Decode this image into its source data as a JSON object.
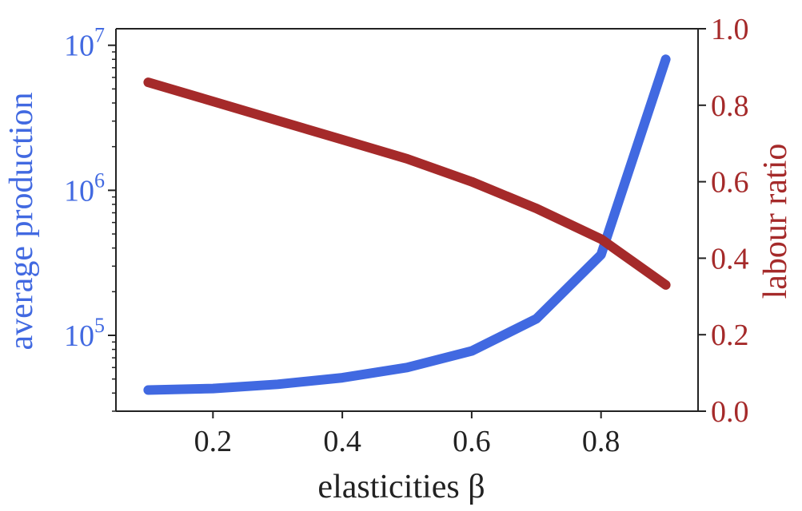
{
  "chart_data": {
    "type": "line",
    "xlabel": "elasticities β",
    "ylabel_left": "average production",
    "ylabel_right": "labour ratio",
    "x_ticks": [
      "0.2",
      "0.4",
      "0.6",
      "0.8"
    ],
    "x_tick_values": [
      0.2,
      0.4,
      0.6,
      0.8
    ],
    "xlim": [
      0.05,
      0.95
    ],
    "y_left_scale": "log",
    "y_left_lim": [
      30000,
      13000000
    ],
    "y_left_ticks": [
      {
        "value": 100000,
        "base": "10",
        "exp": "5"
      },
      {
        "value": 1000000,
        "base": "10",
        "exp": "6"
      },
      {
        "value": 10000000,
        "base": "10",
        "exp": "7"
      }
    ],
    "y_right_lim": [
      0.0,
      1.0
    ],
    "y_right_ticks": [
      "0.0",
      "0.2",
      "0.4",
      "0.6",
      "0.8",
      "1.0"
    ],
    "grid": false,
    "series": [
      {
        "axis": "left",
        "color": "#4169E1",
        "x": [
          0.1,
          0.2,
          0.3,
          0.4,
          0.5,
          0.6,
          0.7,
          0.8,
          0.9
        ],
        "y": [
          42000,
          43000,
          46000,
          51000,
          60000,
          78000,
          130000,
          360000,
          8000000
        ]
      },
      {
        "axis": "right",
        "color": "#A52A2A",
        "x": [
          0.1,
          0.2,
          0.3,
          0.4,
          0.5,
          0.6,
          0.7,
          0.8,
          0.9
        ],
        "y": [
          0.86,
          0.81,
          0.76,
          0.71,
          0.66,
          0.6,
          0.53,
          0.45,
          0.33
        ]
      }
    ],
    "colors": {
      "left_axis": "#4169E1",
      "right_axis": "#A52A2A",
      "x_axis": "#222222"
    }
  }
}
